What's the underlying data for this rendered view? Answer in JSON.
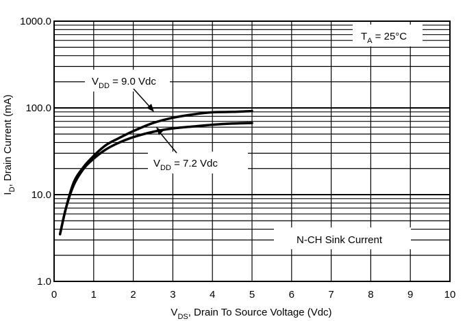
{
  "chart_data": {
    "type": "line",
    "xlabel": {
      "main": "V",
      "sub": "DS",
      "rest": ", Drain To Source Voltage (Vdc)"
    },
    "ylabel": {
      "main": "I",
      "sub": "D",
      "rest": ", Drain Current (mA)"
    },
    "xlim": [
      0,
      10
    ],
    "ylim": [
      1,
      1000
    ],
    "yscale": "log",
    "x_ticks": [
      "0",
      "1",
      "2",
      "3",
      "4",
      "5",
      "6",
      "7",
      "8",
      "9",
      "10"
    ],
    "y_ticks": [
      "1.0",
      "10.0",
      "100.0",
      "1000.0"
    ],
    "grid": true,
    "series": [
      {
        "name": "V_DD = 9.0 Vdc",
        "x": [
          0.15,
          0.3,
          0.5,
          0.75,
          1.0,
          1.3,
          1.6,
          2.0,
          2.5,
          3.0,
          3.5,
          4.0,
          4.5,
          5.0
        ],
        "y": [
          3.5,
          7,
          14,
          21,
          28,
          37,
          44,
          54,
          67,
          77,
          84,
          89,
          90,
          92
        ]
      },
      {
        "name": "V_DD = 7.2 Vdc",
        "x": [
          0.15,
          0.3,
          0.5,
          0.75,
          1.0,
          1.3,
          1.6,
          2.0,
          2.5,
          3.0,
          3.5,
          4.0,
          4.5,
          5.0
        ],
        "y": [
          3.5,
          7,
          13,
          20,
          26,
          33,
          39,
          46,
          53,
          58,
          61,
          64,
          66,
          67
        ]
      }
    ],
    "annotations": {
      "temp": {
        "main": "T",
        "sub": "A",
        "rest": " = 25°C"
      },
      "vdd9": {
        "main": "V",
        "sub": "DD",
        "rest": " = 9.0 Vdc"
      },
      "vdd72": {
        "main": "V",
        "sub": "DD",
        "rest": " = 7.2 Vdc"
      },
      "sink": "N-CH Sink Current"
    }
  }
}
